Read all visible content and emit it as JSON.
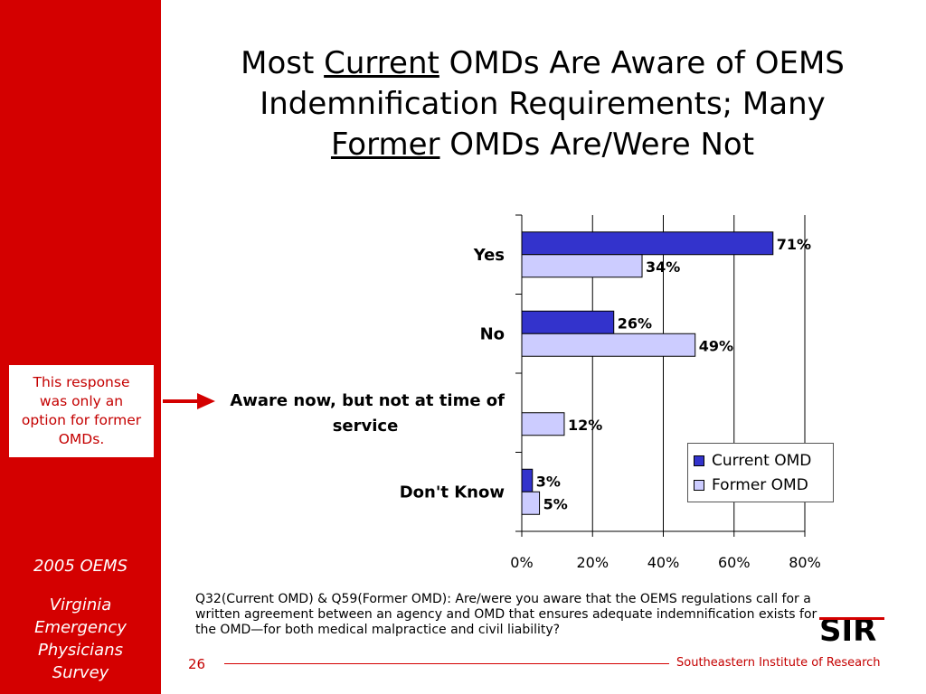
{
  "title": {
    "line1_pre": "Most ",
    "line1_underlined": "Current",
    "line1_post": " OMDs Are Aware of OEMS",
    "line2": "Indemnification Requirements; Many",
    "line3_underlined": "Former",
    "line3_post": " OMDs Are/Were Not"
  },
  "sidebar": {
    "note": "This response was only an option for former OMDs.",
    "year": "2005 OEMS",
    "survey_lines": [
      "Virginia",
      "Emergency",
      "Physicians",
      "Survey"
    ]
  },
  "chart_data": {
    "type": "bar",
    "orientation": "horizontal",
    "categories": [
      "Yes",
      "No",
      "Aware now, but not at time of service",
      "Don't Know"
    ],
    "category_lines": [
      [
        "Yes"
      ],
      [
        "No"
      ],
      [
        "Aware now, but not at time of",
        "service"
      ],
      [
        "Don't Know"
      ]
    ],
    "series": [
      {
        "name": "Current OMD",
        "color": "#3333cc",
        "values": [
          71,
          26,
          null,
          3
        ],
        "labels": [
          "71%",
          "26%",
          "",
          "3%"
        ]
      },
      {
        "name": "Former OMD",
        "color": "#ccccff",
        "values": [
          34,
          49,
          12,
          5
        ],
        "labels": [
          "34%",
          "49%",
          "12%",
          "5%"
        ]
      }
    ],
    "xlim": [
      0,
      80
    ],
    "xticks": [
      0,
      20,
      40,
      60,
      80
    ],
    "xtick_labels": [
      "0%",
      "20%",
      "40%",
      "60%",
      "80%"
    ],
    "grid": "vertical",
    "legend": "bottom-right"
  },
  "footnote": "Q32(Current OMD) & Q59(Former OMD): Are/were you aware that the OEMS regulations call for a written agreement between an agency and OMD that ensures adequate indemnification exists for the OMD—for both medical malpractice and civil liability?",
  "footer": {
    "page_number": "26",
    "organization": "Southeastern Institute of Research",
    "logo_text": "SIR"
  },
  "colors": {
    "accent": "#d40000",
    "current": "#3333cc",
    "former": "#ccccff"
  }
}
